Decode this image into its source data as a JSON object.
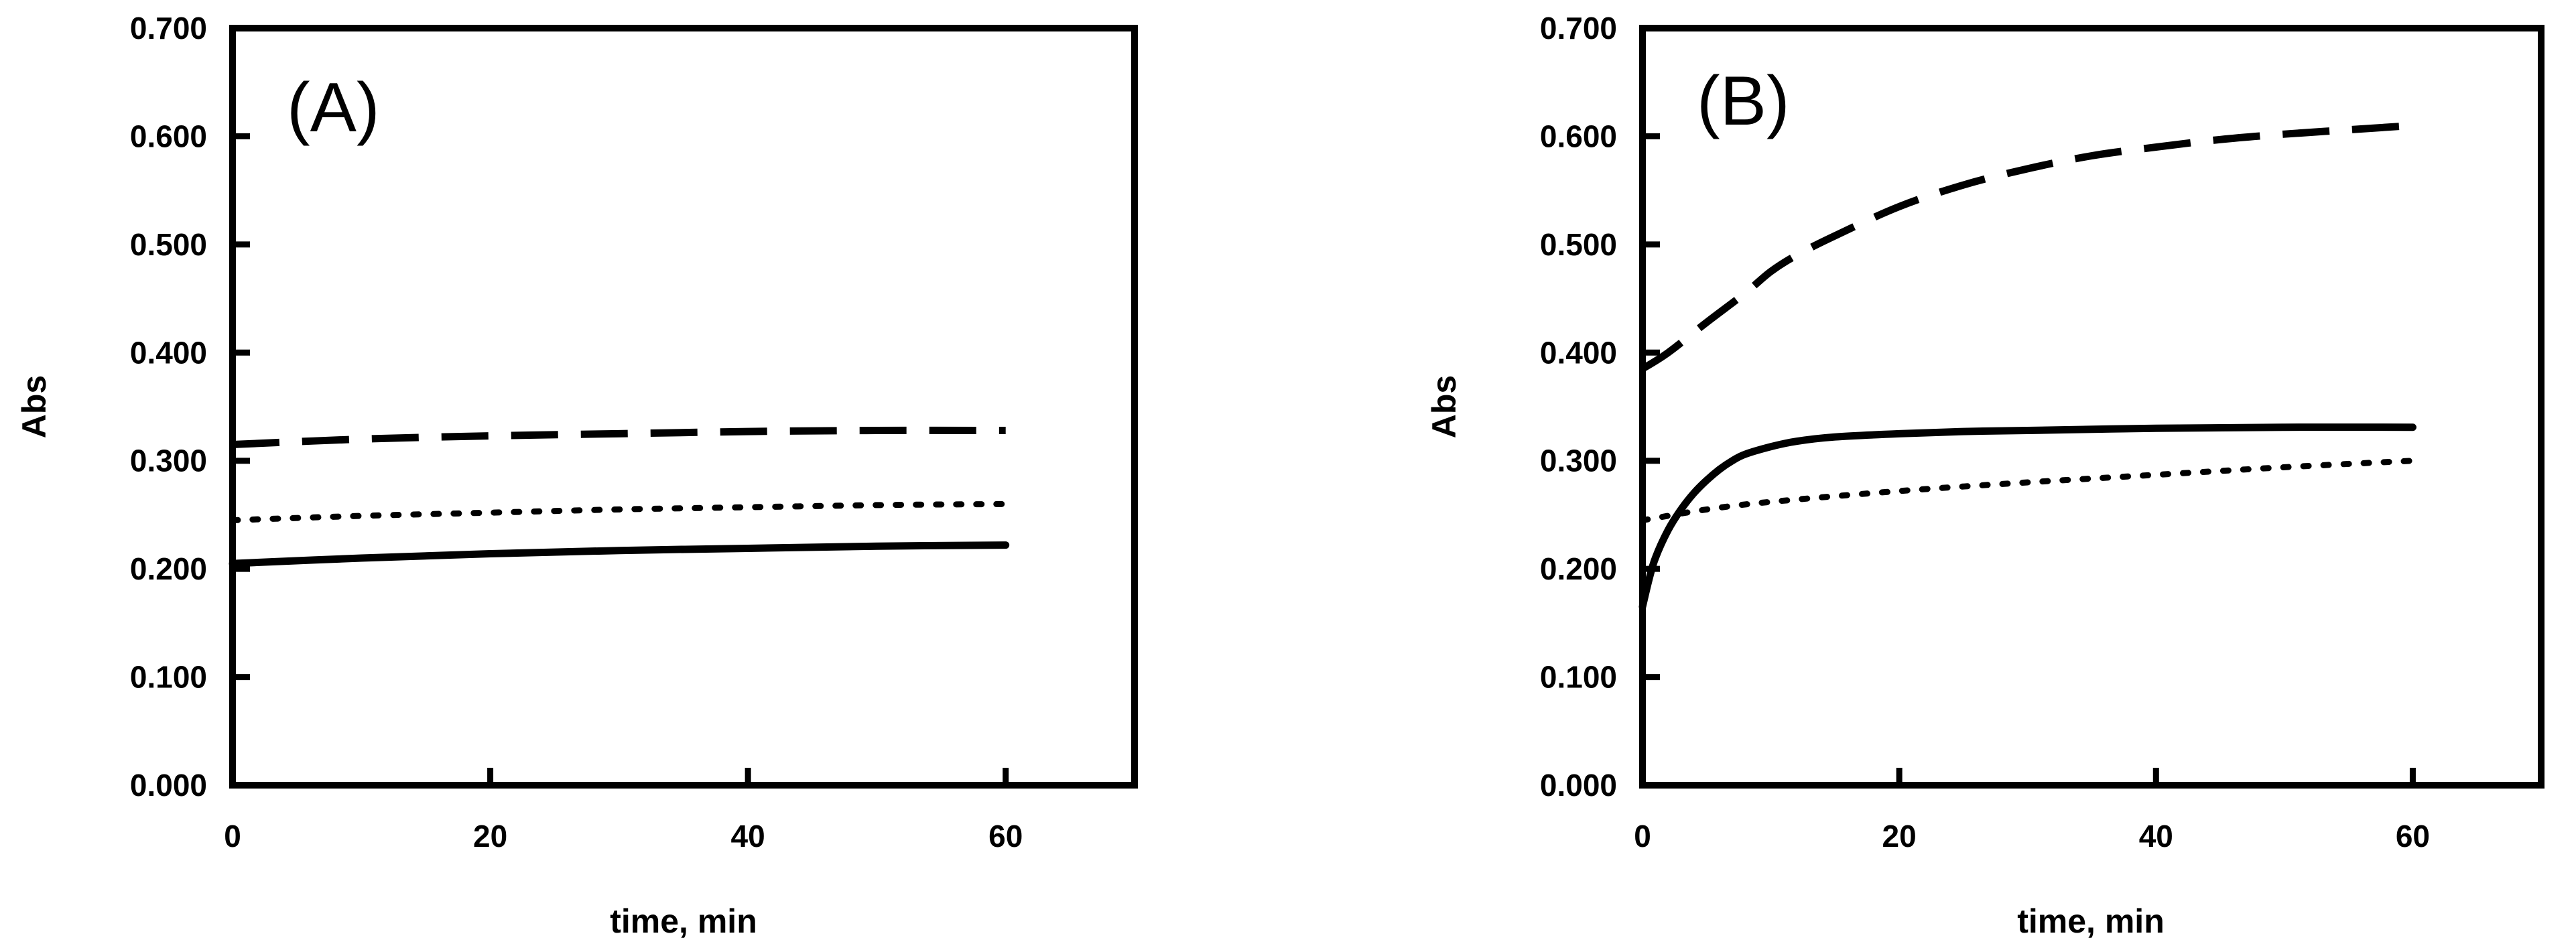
{
  "chart_data": [
    {
      "type": "line",
      "panel_label": "(A)",
      "xlabel": "time, min",
      "ylabel": "Abs",
      "xlim": [
        0,
        70
      ],
      "ylim": [
        0.0,
        0.7
      ],
      "xticks": [
        "0",
        "20",
        "40",
        "60"
      ],
      "yticks": [
        "0.000",
        "0.100",
        "0.200",
        "0.300",
        "0.400",
        "0.500",
        "0.600",
        "0.700"
      ],
      "grid": false,
      "line_color": "#000000",
      "series": [
        {
          "style": "dashed",
          "x": [
            0,
            10,
            20,
            30,
            40,
            50,
            60
          ],
          "y": [
            0.315,
            0.32,
            0.323,
            0.325,
            0.327,
            0.328,
            0.328
          ]
        },
        {
          "style": "dotted",
          "x": [
            0,
            10,
            20,
            30,
            40,
            50,
            60
          ],
          "y": [
            0.245,
            0.249,
            0.252,
            0.255,
            0.257,
            0.259,
            0.26
          ]
        },
        {
          "style": "solid",
          "x": [
            0,
            10,
            20,
            30,
            40,
            50,
            60
          ],
          "y": [
            0.205,
            0.21,
            0.214,
            0.217,
            0.219,
            0.221,
            0.222
          ]
        }
      ]
    },
    {
      "type": "line",
      "panel_label": "(B)",
      "xlabel": "time, min",
      "ylabel": "Abs",
      "xlim": [
        0,
        70
      ],
      "ylim": [
        0.0,
        0.7
      ],
      "xticks": [
        "0",
        "20",
        "40",
        "60"
      ],
      "yticks": [
        "0.000",
        "0.100",
        "0.200",
        "0.300",
        "0.400",
        "0.500",
        "0.600",
        "0.700"
      ],
      "grid": false,
      "line_color": "#000000",
      "series": [
        {
          "style": "dashed",
          "x": [
            0,
            2,
            5,
            8,
            10,
            12,
            15,
            20,
            25,
            30,
            35,
            40,
            45,
            50,
            55,
            60
          ],
          "y": [
            0.385,
            0.4,
            0.428,
            0.455,
            0.475,
            0.49,
            0.508,
            0.535,
            0.555,
            0.57,
            0.582,
            0.59,
            0.597,
            0.602,
            0.606,
            0.61
          ]
        },
        {
          "style": "dotted",
          "x": [
            0,
            1,
            5,
            10,
            20,
            30,
            40,
            50,
            60
          ],
          "y": [
            0.245,
            0.247,
            0.255,
            0.262,
            0.272,
            0.28,
            0.287,
            0.294,
            0.3
          ]
        },
        {
          "style": "solid",
          "x": [
            0,
            0.5,
            1,
            2,
            3,
            4,
            5,
            6,
            7,
            8,
            10,
            12,
            15,
            20,
            25,
            30,
            40,
            50,
            60
          ],
          "y": [
            0.165,
            0.19,
            0.21,
            0.236,
            0.255,
            0.27,
            0.282,
            0.292,
            0.3,
            0.306,
            0.313,
            0.318,
            0.322,
            0.325,
            0.327,
            0.328,
            0.33,
            0.331,
            0.331
          ]
        }
      ]
    }
  ]
}
